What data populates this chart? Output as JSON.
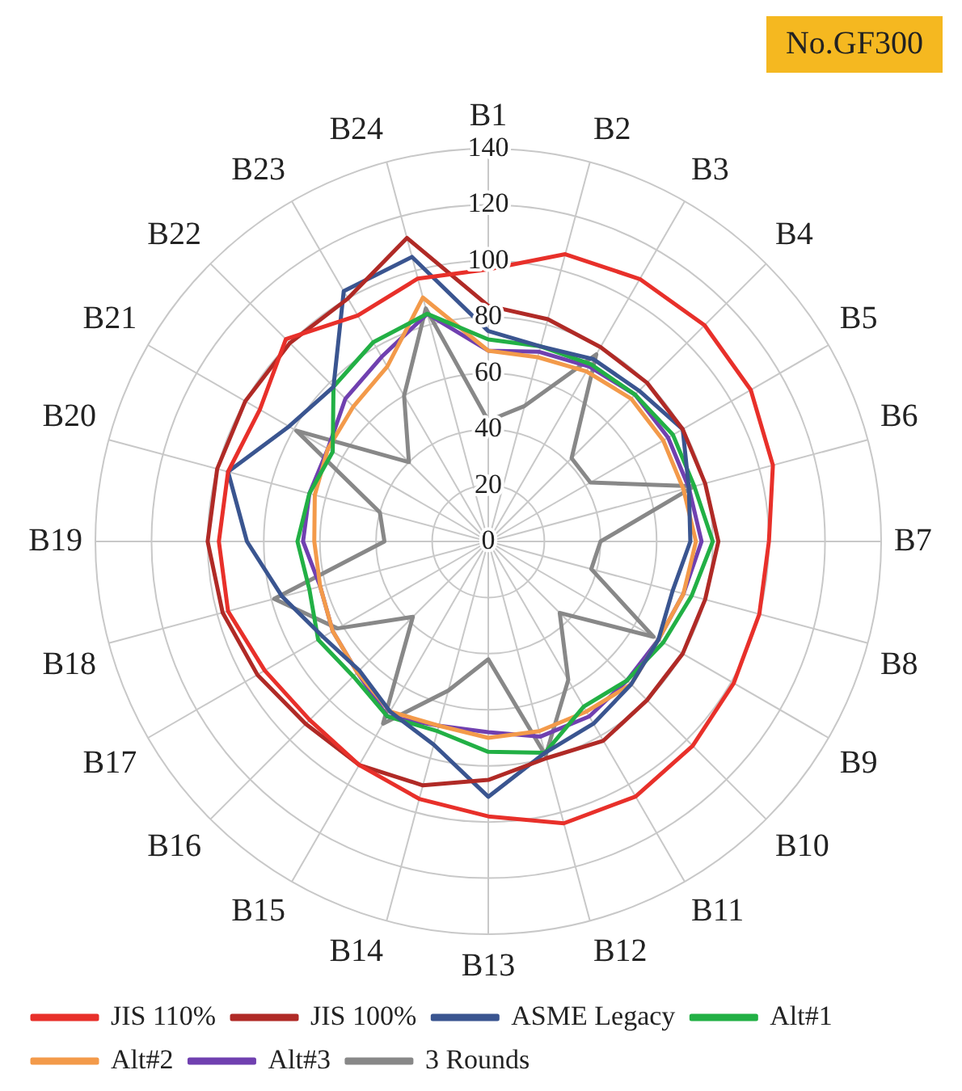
{
  "chart_data": {
    "type": "radar",
    "categories": [
      "B1",
      "B2",
      "B3",
      "B4",
      "B5",
      "B6",
      "B7",
      "B8",
      "B9",
      "B10",
      "B11",
      "B12",
      "B13",
      "B14",
      "B15",
      "B16",
      "B17",
      "B18",
      "B19",
      "B20",
      "B21",
      "B22",
      "B23",
      "B24"
    ],
    "series": [
      {
        "name": "JIS 110%",
        "color": "#e8302a",
        "values": [
          97,
          106,
          108,
          109,
          108,
          105,
          100,
          100,
          101,
          103,
          105,
          104,
          98,
          95,
          92,
          90,
          92,
          96,
          96,
          96,
          94,
          102,
          93,
          97
        ]
      },
      {
        "name": "JIS 100%",
        "color": "#b02a26",
        "values": [
          84,
          82,
          80,
          80,
          80,
          80,
          82,
          80,
          80,
          80,
          82,
          80,
          85,
          90,
          92,
          92,
          95,
          98,
          100,
          100,
          100,
          100,
          100,
          112
        ]
      },
      {
        "name": "ASME Legacy",
        "color": "#3a5590",
        "values": [
          75,
          72,
          75,
          76,
          80,
          74,
          72,
          68,
          70,
          72,
          75,
          78,
          91,
          75,
          70,
          65,
          68,
          76,
          86,
          96,
          82,
          78,
          103,
          105
        ]
      },
      {
        "name": "Alt#1",
        "color": "#22b045",
        "values": [
          72,
          72,
          73,
          74,
          76,
          76,
          80,
          75,
          72,
          70,
          68,
          78,
          75,
          70,
          72,
          68,
          70,
          66,
          68,
          66,
          64,
          78,
          82,
          84
        ]
      },
      {
        "name": "Alt#2",
        "color": "#f39a4a",
        "values": [
          68,
          68,
          70,
          72,
          72,
          72,
          74,
          72,
          70,
          72,
          70,
          70,
          70,
          68,
          70,
          66,
          64,
          62,
          62,
          64,
          66,
          68,
          72,
          90
        ]
      },
      {
        "name": "Alt#3",
        "color": "#7040b0",
        "values": [
          68,
          70,
          72,
          74,
          74,
          74,
          76,
          72,
          70,
          70,
          72,
          72,
          68,
          68,
          72,
          66,
          64,
          62,
          66,
          66,
          66,
          72,
          76,
          84
        ]
      },
      {
        "name": "3 Rounds",
        "color": "#888888",
        "values": [
          43,
          50,
          77,
          42,
          42,
          76,
          40,
          38,
          68,
          36,
          57,
          79,
          42,
          55,
          75,
          38,
          62,
          79,
          37,
          40,
          79,
          40,
          60,
          86
        ]
      }
    ],
    "ylim": [
      0,
      140
    ],
    "yticks": [
      0,
      20,
      40,
      60,
      80,
      100,
      120,
      140
    ],
    "grid": true,
    "legend": "bottom",
    "marker": "none",
    "annotations": [
      "No.GF300"
    ]
  }
}
